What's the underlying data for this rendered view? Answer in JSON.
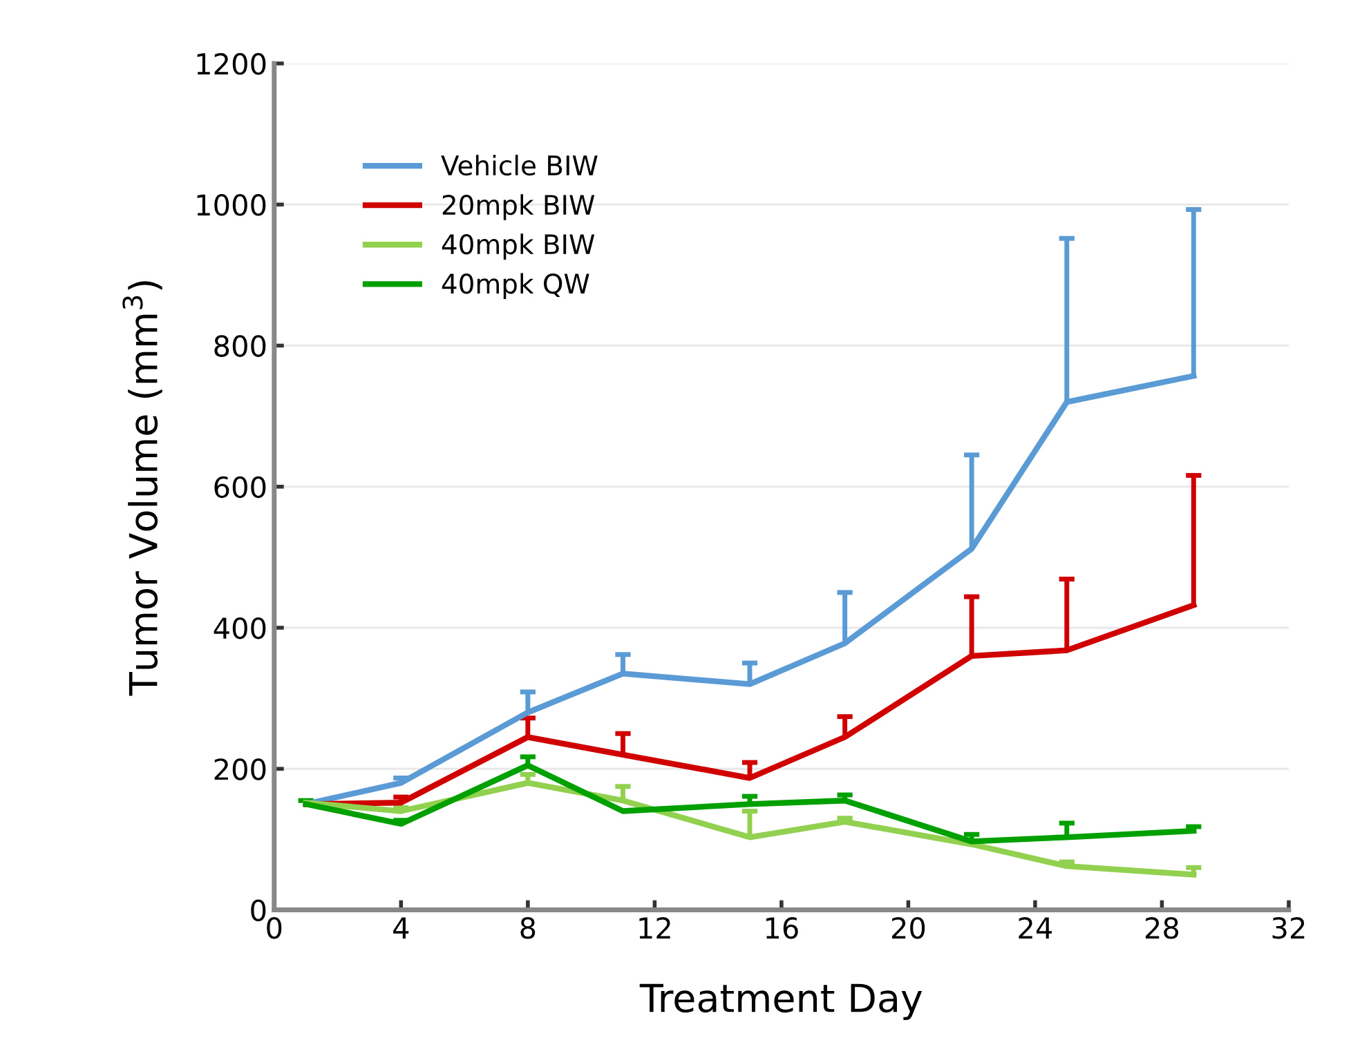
{
  "chart_data": {
    "type": "line",
    "xlabel": "Treatment Day",
    "ylabel": "Tumor Volume (mm$^{3}$)",
    "xlim": [
      0,
      32
    ],
    "xticks": [
      0,
      4,
      8,
      12,
      16,
      20,
      24,
      28,
      32
    ],
    "ylim": [
      0,
      1200
    ],
    "yticks": [
      0,
      200,
      400,
      600,
      800,
      1000,
      1200
    ],
    "grid": "y",
    "legend": "top left",
    "marker": "none",
    "line_style": "solid",
    "x": [
      1,
      4,
      8,
      11,
      15,
      18,
      22,
      25,
      29
    ],
    "series": [
      {
        "name": "Vehicle BIW",
        "color": "#5b9bd5",
        "values": [
          150,
          180,
          280,
          335,
          320,
          378,
          512,
          720,
          757
        ],
        "errors": [
          null,
          [
            180,
            187
          ],
          [
            280,
            309
          ],
          [
            335,
            362
          ],
          [
            320,
            350
          ],
          [
            378,
            450
          ],
          [
            512,
            645
          ],
          [
            720,
            952
          ],
          [
            757,
            993
          ]
        ]
      },
      {
        "name": "20mpk BIW",
        "color": "#d00000",
        "values": [
          150,
          152,
          245,
          220,
          187,
          245,
          360,
          368,
          432
        ],
        "errors": [
          null,
          [
            152,
            160
          ],
          [
            245,
            272
          ],
          [
            220,
            250
          ],
          [
            187,
            209
          ],
          [
            245,
            274
          ],
          [
            360,
            444
          ],
          [
            368,
            469
          ],
          [
            432,
            616
          ]
        ]
      },
      {
        "name": "40mpk BIW",
        "color": "#92d050",
        "values": [
          152,
          140,
          180,
          155,
          103,
          125,
          93,
          62,
          50
        ],
        "errors": [
          null,
          [
            140,
            145
          ],
          [
            180,
            192
          ],
          [
            155,
            175
          ],
          [
            103,
            140
          ],
          [
            125,
            130
          ],
          null,
          [
            62,
            68
          ],
          [
            50,
            60
          ]
        ]
      },
      {
        "name": "40mpk QW",
        "color": "#00a000",
        "values": [
          150,
          122,
          205,
          140,
          150,
          155,
          97,
          103,
          112
        ],
        "errors": [
          [
            150,
            155
          ],
          [
            122,
            127
          ],
          [
            205,
            217
          ],
          null,
          [
            150,
            161
          ],
          [
            155,
            163
          ],
          [
            97,
            107
          ],
          [
            103,
            123
          ],
          [
            112,
            118
          ]
        ]
      }
    ]
  }
}
